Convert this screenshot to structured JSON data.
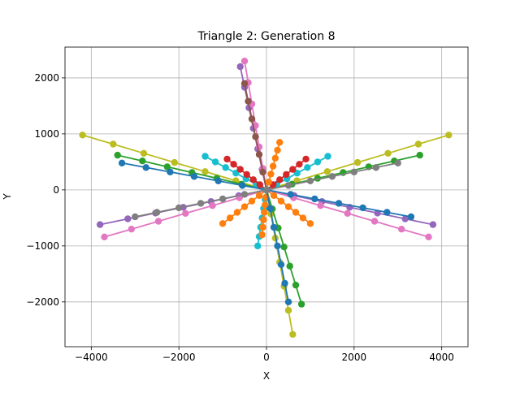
{
  "chart_data": {
    "type": "line",
    "title": "Triangle 2: Generation 8",
    "xlabel": "X",
    "ylabel": "Y",
    "xlim": [
      -4600,
      4600
    ],
    "ylim": [
      -2800,
      2550
    ],
    "xticks": [
      -4000,
      -2000,
      0,
      2000,
      4000
    ],
    "xtick_labels": [
      "−4000",
      "−2000",
      "0",
      "2000",
      "4000"
    ],
    "yticks": [
      -2000,
      -1000,
      0,
      1000,
      2000
    ],
    "ytick_labels": [
      "−2000",
      "−1000",
      "0",
      "1000",
      "2000"
    ],
    "grid": true,
    "marker": "circle",
    "series_colors": [
      "#1f77b4",
      "#ff7f0e",
      "#2ca02c",
      "#d62728",
      "#9467bd",
      "#8c564b",
      "#e377c2",
      "#7f7f7f",
      "#bcbd22",
      "#17becf"
    ],
    "series": [
      {
        "color": "#bcbd22",
        "x": [
          0,
          -700,
          -1400,
          -2100,
          -2800,
          -3500,
          -4200
        ],
        "y": [
          0,
          163,
          327,
          490,
          653,
          817,
          980
        ]
      },
      {
        "color": "#bcbd22",
        "x": [
          0,
          693,
          1387,
          2080,
          2773,
          3467,
          4160
        ],
        "y": [
          0,
          163,
          327,
          490,
          653,
          817,
          980
        ]
      },
      {
        "color": "#2ca02c",
        "x": [
          0,
          -567,
          -1133,
          -1700,
          -2267,
          -2833,
          -3400
        ],
        "y": [
          0,
          103,
          207,
          310,
          413,
          517,
          620
        ]
      },
      {
        "color": "#2ca02c",
        "x": [
          0,
          583,
          1167,
          1750,
          2333,
          2917,
          3500
        ],
        "y": [
          0,
          103,
          207,
          310,
          413,
          517,
          620
        ]
      },
      {
        "color": "#9467bd",
        "x": [
          0,
          -633,
          -1267,
          -1900,
          -2533,
          -3167,
          -3800
        ],
        "y": [
          0,
          -103,
          -207,
          -310,
          -413,
          -517,
          -620
        ]
      },
      {
        "color": "#9467bd",
        "x": [
          0,
          633,
          1267,
          1900,
          2533,
          3167,
          3800
        ],
        "y": [
          0,
          -103,
          -207,
          -310,
          -413,
          -517,
          -620
        ]
      },
      {
        "color": "#e377c2",
        "x": [
          0,
          -617,
          -1233,
          -1850,
          -2467,
          -3083,
          -3700
        ],
        "y": [
          0,
          -140,
          -280,
          -420,
          -560,
          -700,
          -840
        ]
      },
      {
        "color": "#e377c2",
        "x": [
          0,
          617,
          1233,
          1850,
          2467,
          3083,
          3700
        ],
        "y": [
          0,
          -140,
          -280,
          -420,
          -560,
          -700,
          -840
        ]
      },
      {
        "color": "#9467bd",
        "x": [
          0,
          -100,
          -200,
          -300,
          -400,
          -500,
          -600
        ],
        "y": [
          0,
          367,
          733,
          1100,
          1467,
          1833,
          2200
        ]
      },
      {
        "color": "#e377c2",
        "x": [
          0,
          -83,
          -167,
          -250,
          -333,
          -417,
          -500
        ],
        "y": [
          0,
          383,
          767,
          1150,
          1533,
          1917,
          2300
        ]
      },
      {
        "color": "#bcbd22",
        "x": [
          0,
          100,
          200,
          300,
          400,
          500,
          600
        ],
        "y": [
          0,
          -430,
          -860,
          -1290,
          -1720,
          -2150,
          -2580
        ]
      },
      {
        "color": "#2ca02c",
        "x": [
          0,
          133,
          267,
          400,
          533,
          667,
          800
        ],
        "y": [
          0,
          -340,
          -680,
          -1020,
          -1360,
          -1700,
          -2040
        ]
      },
      {
        "color": "#17becf",
        "x": [
          0,
          233,
          467,
          700,
          933,
          1167,
          1400
        ],
        "y": [
          0,
          100,
          200,
          300,
          400,
          500,
          600
        ]
      },
      {
        "color": "#17becf",
        "x": [
          0,
          -233,
          -467,
          -700,
          -933,
          -1167,
          -1400
        ],
        "y": [
          0,
          100,
          200,
          300,
          400,
          500,
          600
        ]
      },
      {
        "color": "#17becf",
        "x": [
          0,
          -33,
          -67,
          -100,
          -133,
          -167,
          -200
        ],
        "y": [
          0,
          -167,
          -333,
          -500,
          -667,
          -833,
          -1000
        ]
      },
      {
        "color": "#ff7f0e",
        "x": [
          0,
          -167,
          -333,
          -500,
          -667,
          -833,
          -1000
        ],
        "y": [
          0,
          -100,
          -200,
          -300,
          -400,
          -500,
          -600
        ]
      },
      {
        "color": "#ff7f0e",
        "x": [
          0,
          167,
          333,
          500,
          667,
          833,
          1000
        ],
        "y": [
          0,
          -100,
          -200,
          -300,
          -400,
          -500,
          -600
        ]
      },
      {
        "color": "#d62728",
        "x": [
          0,
          150,
          300,
          450,
          600,
          750,
          900
        ],
        "y": [
          0,
          92,
          183,
          275,
          367,
          458,
          550
        ]
      },
      {
        "color": "#d62728",
        "x": [
          0,
          -150,
          -300,
          -450,
          -600,
          -750,
          -900
        ],
        "y": [
          0,
          92,
          183,
          275,
          367,
          458,
          550
        ]
      },
      {
        "color": "#ff7f0e",
        "x": [
          0,
          50,
          100,
          150,
          200,
          250,
          300
        ],
        "y": [
          0,
          142,
          283,
          425,
          567,
          708,
          850
        ]
      },
      {
        "color": "#ff7f0e",
        "x": [
          0,
          -17,
          -33,
          -50,
          -67,
          -83,
          -100
        ],
        "y": [
          0,
          -133,
          -267,
          -400,
          -533,
          -667,
          -800
        ]
      },
      {
        "color": "#1f77b4",
        "x": [
          0,
          -550,
          -1100,
          -1650,
          -2200,
          -2750,
          -3300
        ],
        "y": [
          0,
          80,
          160,
          240,
          320,
          400,
          480
        ]
      },
      {
        "color": "#1f77b4",
        "x": [
          0,
          550,
          1100,
          1650,
          2200,
          2750,
          3300
        ],
        "y": [
          0,
          -80,
          -160,
          -240,
          -320,
          -400,
          -480
        ]
      },
      {
        "color": "#8c564b",
        "x": [
          0,
          -83,
          -167,
          -250,
          -333,
          -417,
          -500
        ],
        "y": [
          0,
          317,
          633,
          950,
          1267,
          1583,
          1900
        ]
      },
      {
        "color": "#1f77b4",
        "x": [
          0,
          83,
          167,
          250,
          333,
          417,
          500
        ],
        "y": [
          0,
          -333,
          -667,
          -1000,
          -1333,
          -1667,
          -2000
        ]
      },
      {
        "color": "#7f7f7f",
        "x": [
          0,
          -500,
          -1000,
          -1500,
          -2000,
          -2500,
          -3000
        ],
        "y": [
          0,
          -80,
          -160,
          -240,
          -320,
          -400,
          -480
        ]
      },
      {
        "color": "#7f7f7f",
        "x": [
          0,
          500,
          1000,
          1500,
          2000,
          2500,
          3000
        ],
        "y": [
          0,
          80,
          160,
          240,
          320,
          400,
          480
        ]
      }
    ]
  }
}
